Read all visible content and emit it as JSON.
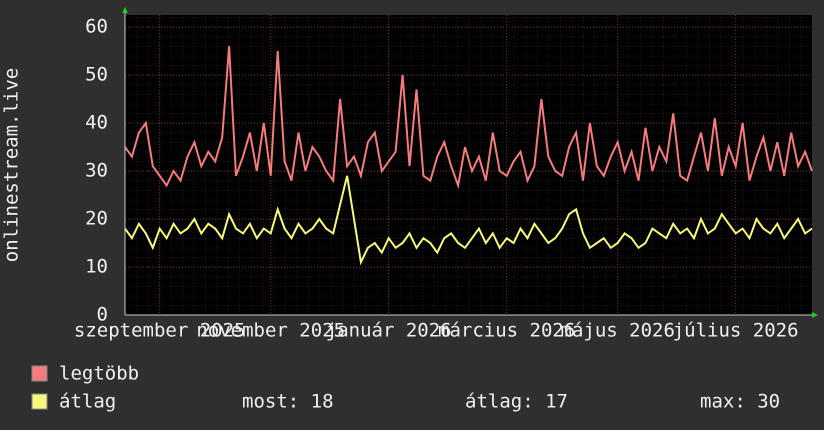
{
  "chart_data": {
    "type": "line",
    "y_label": "onlinestream.live",
    "categories": [
      null,
      null,
      null,
      null,
      null,
      "szeptember 2025",
      null,
      null,
      null,
      null,
      null,
      null,
      null,
      null,
      null,
      null,
      null,
      null,
      null,
      null,
      null,
      "november 2025",
      null,
      null,
      null,
      null,
      null,
      null,
      null,
      null,
      null,
      null,
      null,
      null,
      null,
      null,
      null,
      null,
      "január 2026",
      null,
      null,
      null,
      null,
      null,
      null,
      null,
      null,
      null,
      null,
      null,
      null,
      null,
      null,
      null,
      null,
      "március 2026",
      null,
      null,
      null,
      null,
      null,
      null,
      null,
      null,
      null,
      null,
      null,
      null,
      null,
      null,
      null,
      "május 2026",
      null,
      null,
      null,
      null,
      null,
      null,
      null,
      null,
      null,
      null,
      null,
      null,
      null,
      null,
      null,
      null,
      "július 2026",
      null,
      null,
      null,
      null,
      null,
      null,
      null,
      null,
      null,
      null,
      null
    ],
    "series": [
      {
        "name": "legtöbb",
        "color": "#f47c7c",
        "values": [
          35,
          33,
          38,
          40,
          31,
          29,
          27,
          30,
          28,
          33,
          36,
          31,
          34,
          32,
          37,
          56,
          29,
          33,
          38,
          30,
          40,
          29,
          55,
          32,
          28,
          38,
          30,
          35,
          33,
          30,
          28,
          45,
          31,
          33,
          29,
          36,
          38,
          30,
          32,
          34,
          50,
          31,
          47,
          29,
          28,
          33,
          36,
          31,
          27,
          35,
          30,
          33,
          28,
          38,
          30,
          29,
          32,
          34,
          28,
          31,
          45,
          33,
          30,
          29,
          35,
          38,
          28,
          40,
          31,
          29,
          33,
          36,
          30,
          34,
          28,
          39,
          30,
          35,
          32,
          42,
          29,
          28,
          33,
          38,
          30,
          41,
          29,
          35,
          31,
          40,
          28,
          33,
          37,
          30,
          36,
          29,
          38,
          31,
          34,
          30
        ]
      },
      {
        "name": "átlag",
        "color": "#f7f77c",
        "values": [
          18,
          16,
          19,
          17,
          14,
          18,
          16,
          19,
          17,
          18,
          20,
          17,
          19,
          18,
          16,
          21,
          18,
          17,
          19,
          16,
          18,
          17,
          22,
          18,
          16,
          19,
          17,
          18,
          20,
          18,
          17,
          23,
          29,
          20,
          11,
          14,
          15,
          13,
          16,
          14,
          15,
          17,
          14,
          16,
          15,
          13,
          16,
          17,
          15,
          14,
          16,
          18,
          15,
          17,
          14,
          16,
          15,
          18,
          16,
          19,
          17,
          15,
          16,
          18,
          21,
          22,
          17,
          14,
          15,
          16,
          14,
          15,
          17,
          16,
          14,
          15,
          18,
          17,
          16,
          19,
          17,
          18,
          16,
          20,
          17,
          18,
          21,
          19,
          17,
          18,
          16,
          20,
          18,
          17,
          19,
          16,
          18,
          20,
          17,
          18
        ]
      }
    ],
    "legend_stats": [
      "most: 18",
      "átlag: 17",
      "max: 30"
    ],
    "ylim": [
      0,
      62.5
    ],
    "yticks": [
      0,
      10,
      20,
      30,
      40,
      50,
      60
    ],
    "grid": true
  }
}
